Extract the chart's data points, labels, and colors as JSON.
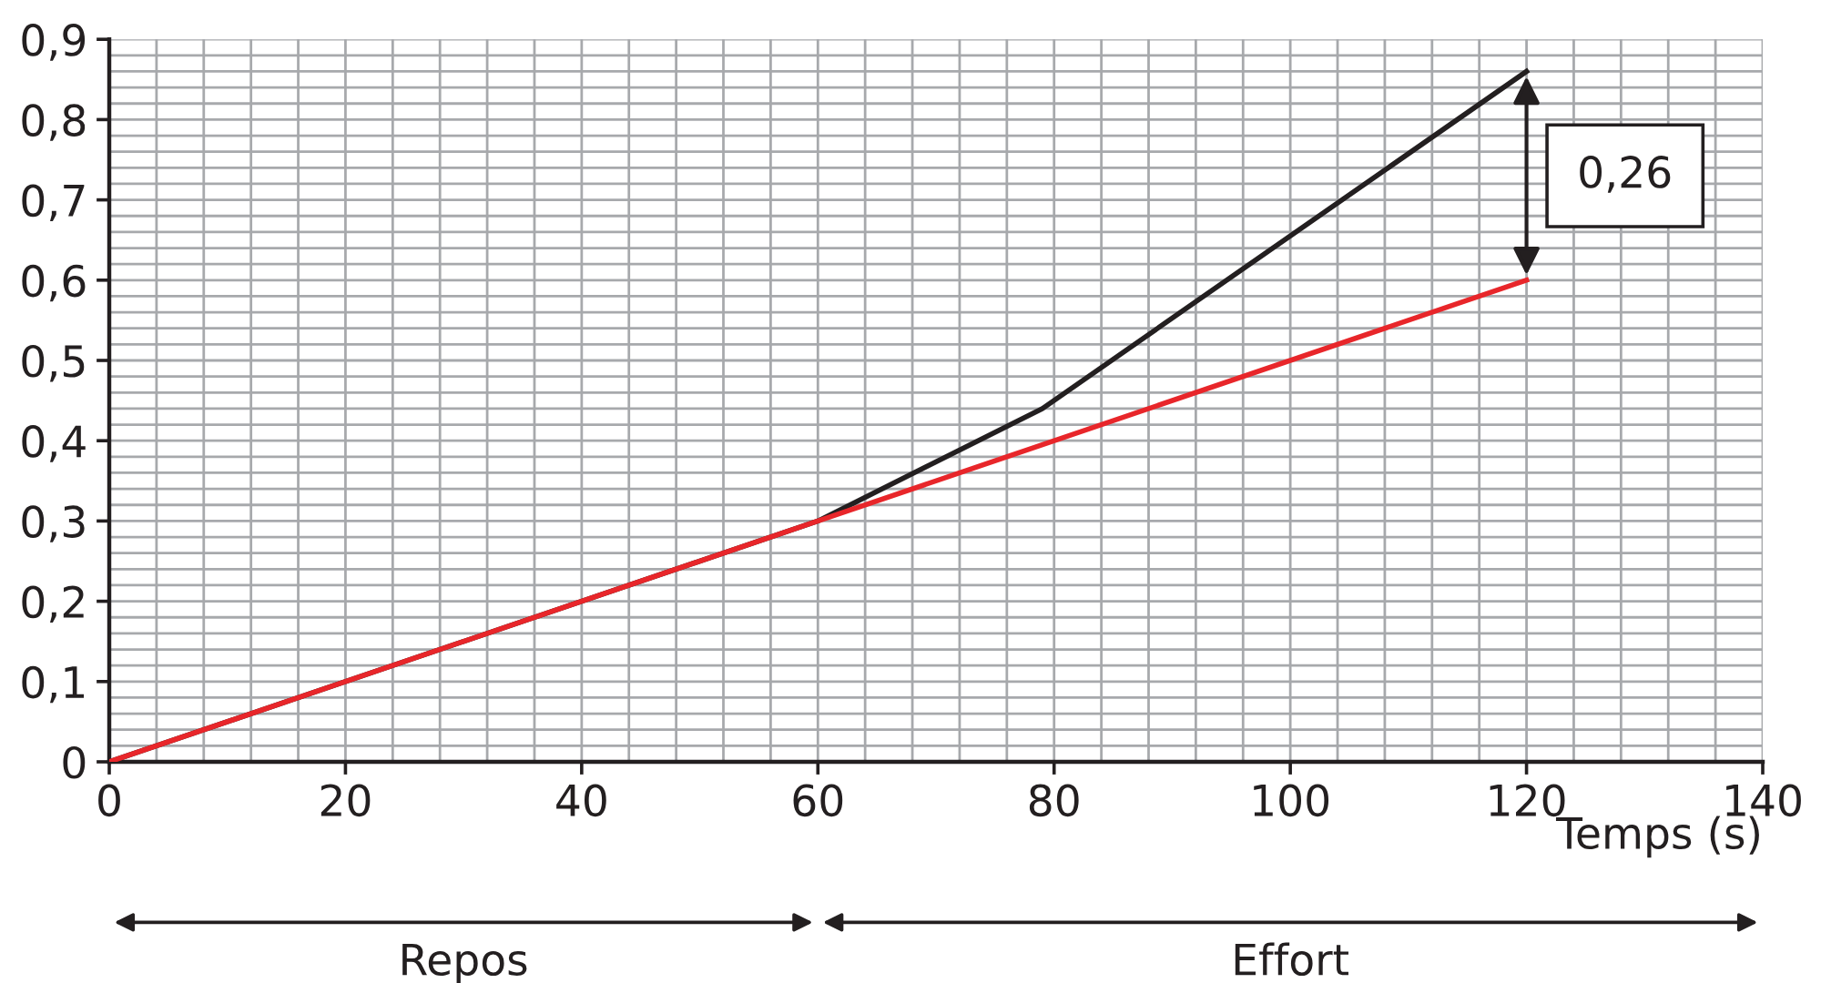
{
  "chart_data": {
    "type": "line",
    "x": [
      0,
      60,
      79,
      120
    ],
    "series": [
      {
        "color": "#231f20",
        "values": [
          0,
          0.3,
          0.44,
          0.86
        ]
      },
      {
        "color": "#e8262a",
        "x": [
          0,
          60,
          120
        ],
        "values": [
          0,
          0.3,
          0.6
        ]
      }
    ],
    "xlabel": "Temps (s)",
    "xlim": [
      0,
      140
    ],
    "xticks": [
      0,
      20,
      40,
      60,
      80,
      100,
      120,
      140
    ],
    "ylim": [
      0,
      0.9
    ],
    "yticks": [
      0,
      {
        "value": 0.1,
        "label": "0,1"
      },
      {
        "value": 0.2,
        "label": "0,2"
      },
      {
        "value": 0.3,
        "label": "0,3"
      },
      {
        "value": 0.4,
        "label": "0,4"
      },
      {
        "value": 0.5,
        "label": "0,5"
      },
      {
        "value": 0.6,
        "label": "0,6"
      },
      {
        "value": 0.7,
        "label": "0,7"
      },
      {
        "value": 0.8,
        "label": "0,8"
      },
      {
        "value": 0.9,
        "label": "0,9"
      }
    ],
    "annotations": [
      "0,26",
      "Repos",
      "Effort"
    ],
    "grid": true,
    "marker": "none",
    "line_style": "solid"
  }
}
